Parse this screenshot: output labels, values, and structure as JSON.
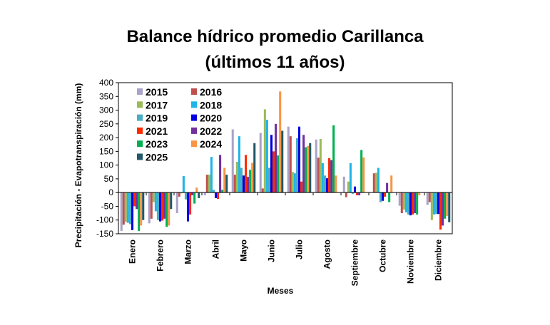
{
  "chart_data": {
    "type": "bar",
    "title_line1": "Balance hídrico promedio Carillanca",
    "title_line2": "(últimos 11 años)",
    "xlabel": "Meses",
    "ylabel": "Precipitación - Evapotranspiración (mm)",
    "ylim": [
      -150,
      400
    ],
    "yticks": [
      -150,
      -100,
      -50,
      0,
      50,
      100,
      150,
      200,
      250,
      300,
      350,
      400
    ],
    "legend_position": "top-left",
    "categories": [
      "Enero",
      "Febrero",
      "Marzo",
      "Abril",
      "Mayo",
      "Junio",
      "Julio",
      "Agosto",
      "Septiembre",
      "Octubre",
      "Noviembre",
      "Diciembre"
    ],
    "series": [
      {
        "name": "2015",
        "color": "#a9a3c9",
        "values": [
          -140,
          -112,
          -75,
          -10,
          230,
          217,
          240,
          193,
          58,
          0,
          -48,
          -45
        ]
      },
      {
        "name": "2016",
        "color": "#c0504d",
        "values": [
          -117,
          -95,
          -15,
          65,
          65,
          15,
          205,
          127,
          -17,
          70,
          -75,
          -35
        ]
      },
      {
        "name": "2017",
        "color": "#9bbb59",
        "values": [
          -107,
          -35,
          -3,
          65,
          112,
          303,
          75,
          195,
          40,
          72,
          -62,
          -100
        ]
      },
      {
        "name": "2018",
        "color": "#1fb4e8",
        "values": [
          -110,
          -68,
          60,
          130,
          205,
          265,
          70,
          107,
          107,
          90,
          -72,
          -80
        ]
      },
      {
        "name": "2019",
        "color": "#4bacc6",
        "values": [
          -115,
          -100,
          -25,
          10,
          90,
          90,
          198,
          62,
          -5,
          -35,
          -80,
          -78
        ]
      },
      {
        "name": "2020",
        "color": "#0000e0",
        "values": [
          -137,
          -105,
          -105,
          -20,
          62,
          210,
          240,
          52,
          22,
          -30,
          -83,
          -78
        ]
      },
      {
        "name": "2021",
        "color": "#ff2a00",
        "values": [
          -50,
          -102,
          -80,
          -23,
          137,
          150,
          40,
          125,
          -10,
          -15,
          -80,
          -135
        ]
      },
      {
        "name": "2022",
        "color": "#7030a0",
        "values": [
          -60,
          -95,
          -10,
          137,
          57,
          250,
          210,
          118,
          -10,
          35,
          -75,
          -120
        ]
      },
      {
        "name": "2023",
        "color": "#00b050",
        "values": [
          -140,
          -125,
          -40,
          10,
          83,
          135,
          165,
          245,
          155,
          -35,
          -80,
          -95
        ]
      },
      {
        "name": "2024",
        "color": "#f79646",
        "values": [
          -120,
          -120,
          18,
          90,
          108,
          368,
          170,
          62,
          128,
          62,
          -10,
          -85
        ]
      },
      {
        "name": "2025",
        "color": "#215968",
        "values": [
          -100,
          -60,
          -20,
          65,
          180,
          225,
          180,
          0,
          0,
          0,
          0,
          -108
        ]
      }
    ]
  }
}
